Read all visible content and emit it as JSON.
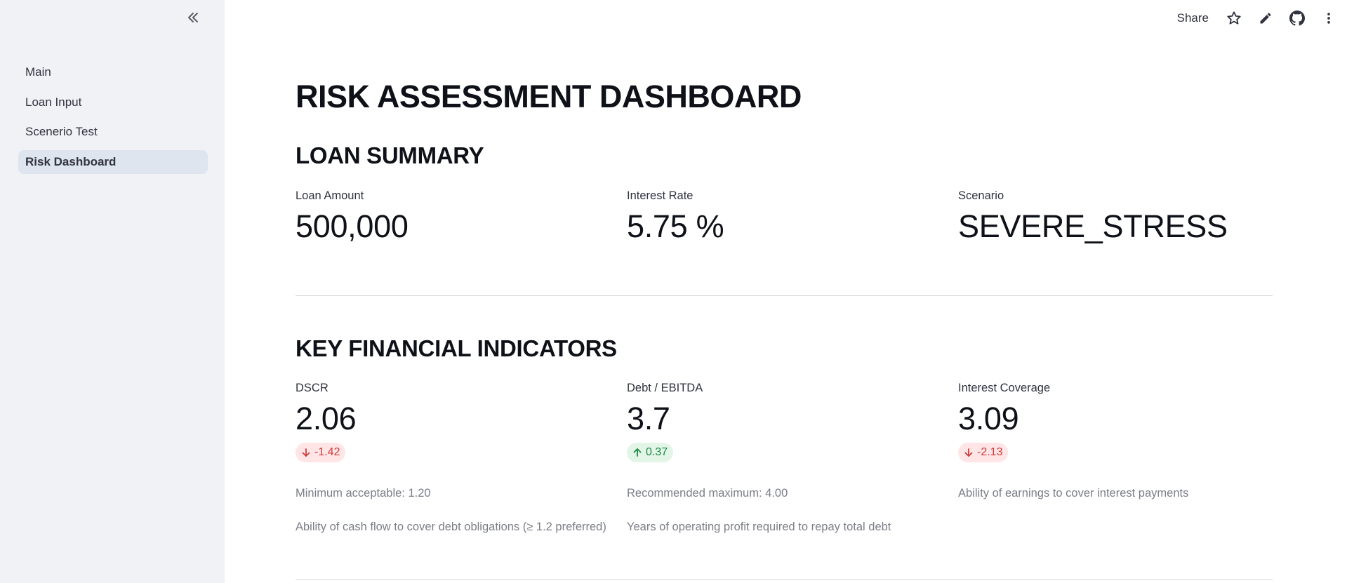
{
  "sidebar": {
    "items": [
      {
        "label": "Main"
      },
      {
        "label": "Loan Input"
      },
      {
        "label": "Scenerio Test"
      },
      {
        "label": "Risk Dashboard",
        "active": true
      }
    ]
  },
  "header": {
    "share_label": "Share",
    "icons": [
      "star-icon",
      "pencil-icon",
      "github-icon",
      "more-vertical-icon"
    ]
  },
  "main": {
    "title": "RISK ASSESSMENT DASHBOARD",
    "loan_summary": {
      "heading": "LOAN SUMMARY",
      "metrics": [
        {
          "label": "Loan Amount",
          "value": "500,000"
        },
        {
          "label": "Interest Rate",
          "value": "5.75 %"
        },
        {
          "label": "Scenario",
          "value": "SEVERE_STRESS"
        }
      ]
    },
    "key_indicators": {
      "heading": "KEY FINANCIAL INDICATORS",
      "metrics": [
        {
          "label": "DSCR",
          "value": "2.06",
          "delta": "-1.42",
          "direction": "down",
          "caption1": "Minimum acceptable: 1.20",
          "caption2": "Ability of cash flow to cover debt obligations (≥ 1.2 preferred)"
        },
        {
          "label": "Debt / EBITDA",
          "value": "3.7",
          "delta": "0.37",
          "direction": "up",
          "caption1": "Recommended maximum: 4.00",
          "caption2": "Years of operating profit required to repay total debt"
        },
        {
          "label": "Interest Coverage",
          "value": "3.09",
          "delta": "-2.13",
          "direction": "down",
          "caption1": "Ability of earnings to cover interest payments"
        }
      ]
    }
  },
  "colors": {
    "sidebar_bg": "#f0f2f6",
    "active_item_bg": "#dee5ef",
    "delta_down_bg": "#ffe5e5",
    "delta_down_text": "#d13b3b",
    "delta_up_bg": "#e2f5e7",
    "delta_up_text": "#1b8a43"
  }
}
